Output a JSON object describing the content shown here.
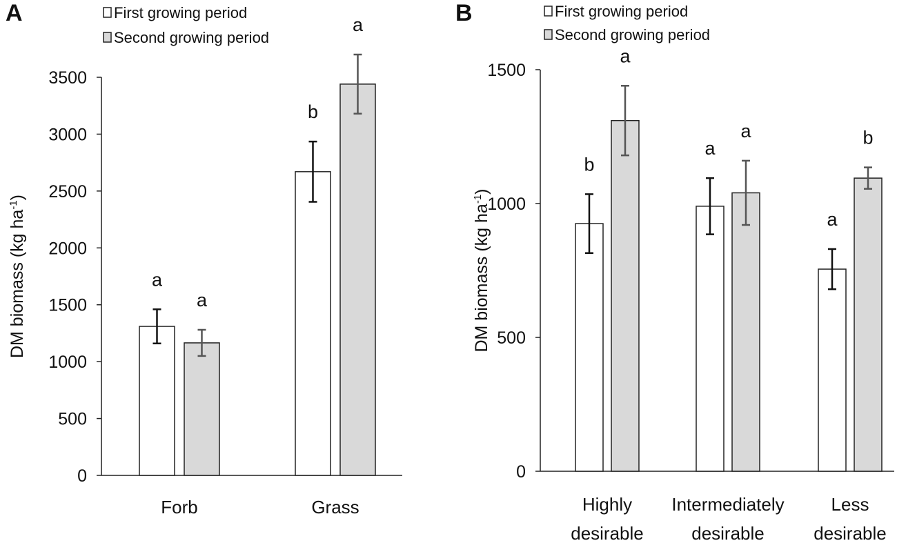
{
  "chart_data": [
    {
      "panel": "A",
      "type": "bar",
      "ylabel": "DM biomass (kg ha",
      "ylabel_sup": "-1",
      "ylabel_close": ")",
      "ylim": [
        0,
        3500
      ],
      "yticks": [
        0,
        500,
        1000,
        1500,
        2000,
        2500,
        3000,
        3500
      ],
      "categories": [
        [
          "Forb"
        ],
        [
          "Grass"
        ]
      ],
      "legend": {
        "placement": "top-left"
      },
      "grid": false,
      "series": [
        {
          "name": "First growing period",
          "color": "#ffffff",
          "errcolor": "#111111",
          "values": [
            1310,
            2670
          ],
          "errors": [
            150,
            265
          ],
          "letters": [
            "a",
            "b"
          ]
        },
        {
          "name": "Second growing period",
          "color": "#d9d9d9",
          "errcolor": "#555555",
          "values": [
            1165,
            3440
          ],
          "errors": [
            115,
            260
          ],
          "letters": [
            "a",
            "a"
          ]
        }
      ]
    },
    {
      "panel": "B",
      "type": "bar",
      "ylabel": "DM biomass (kg ha",
      "ylabel_sup": "-1",
      "ylabel_close": ")",
      "ylim": [
        0,
        1500
      ],
      "yticks": [
        0,
        500,
        1000,
        1500
      ],
      "categories": [
        [
          "Highly",
          "desirable"
        ],
        [
          "Intermediately",
          "desirable"
        ],
        [
          "Less",
          "desirable"
        ]
      ],
      "legend": {
        "placement": "top-left"
      },
      "grid": false,
      "series": [
        {
          "name": "First growing period",
          "color": "#ffffff",
          "errcolor": "#111111",
          "values": [
            925,
            990,
            755
          ],
          "errors": [
            110,
            105,
            75
          ],
          "letters": [
            "b",
            "a",
            "a"
          ]
        },
        {
          "name": "Second growing period",
          "color": "#d9d9d9",
          "errcolor": "#555555",
          "values": [
            1310,
            1040,
            1095
          ],
          "errors": [
            130,
            120,
            40
          ],
          "letters": [
            "a",
            "a",
            "b"
          ]
        }
      ]
    }
  ]
}
